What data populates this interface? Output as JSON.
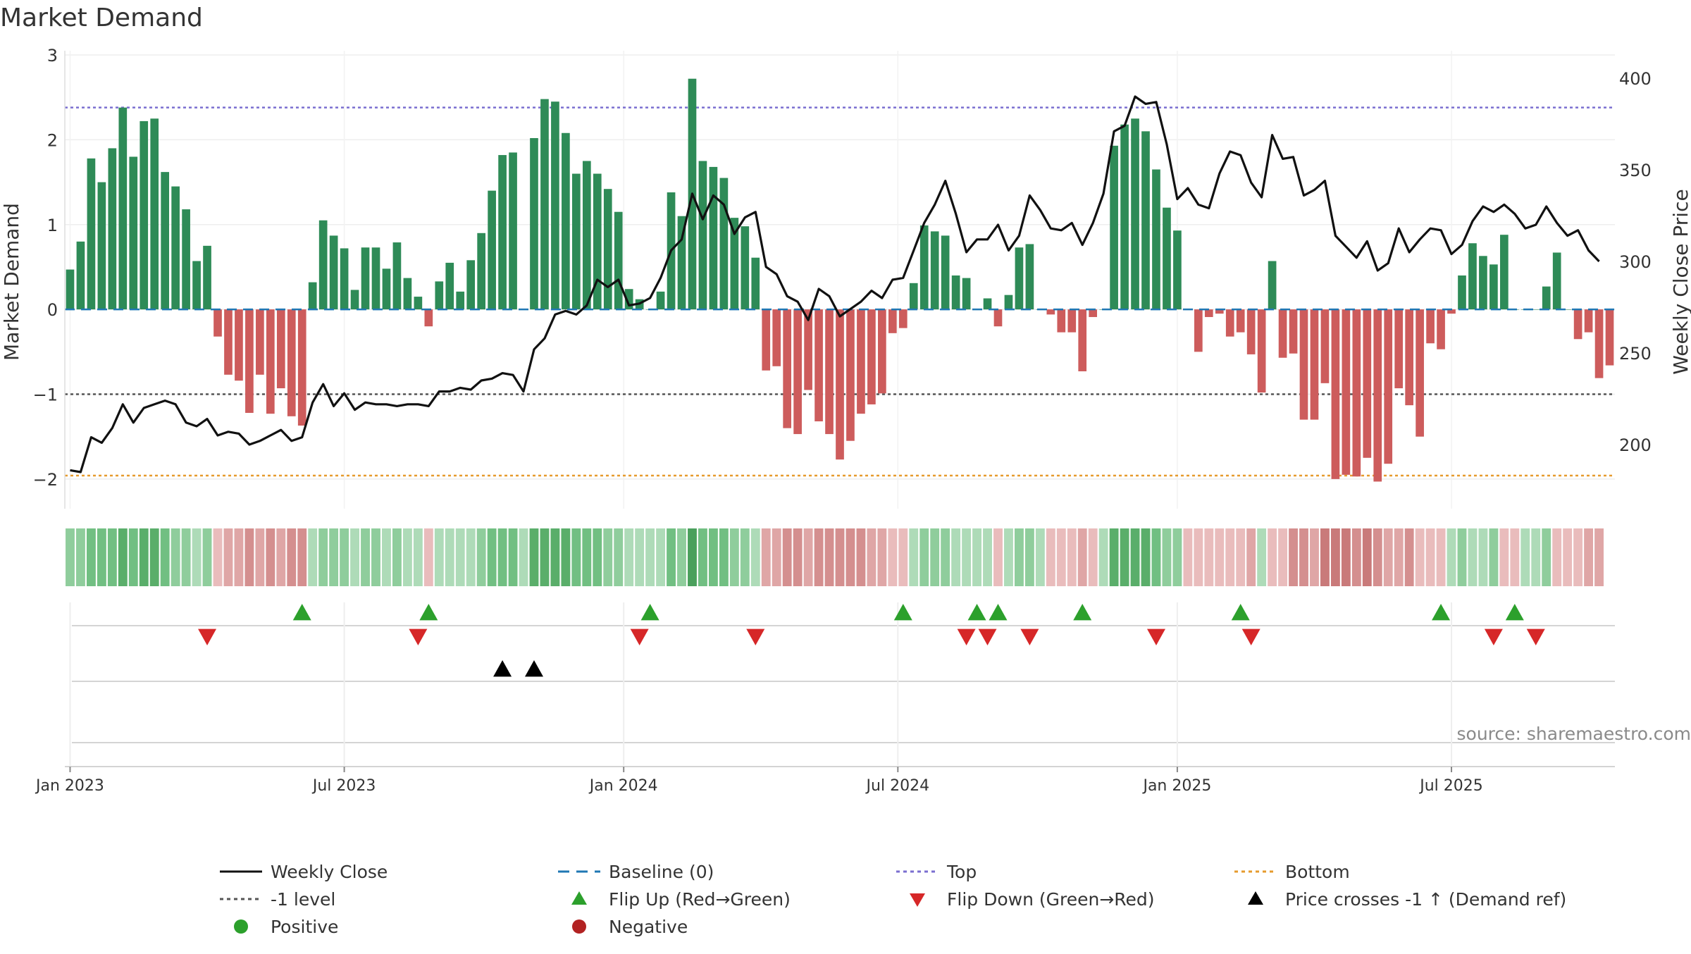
{
  "chart_data": {
    "type": "bar",
    "title": "Market Demand",
    "ylabel_left": "Market Demand",
    "ylabel_right": "Weekly Close Price",
    "ylim_left": [
      -2.35,
      3.05
    ],
    "ylim_right": [
      165,
      415
    ],
    "yticks_left": [
      -2,
      -1,
      0,
      1,
      2,
      3
    ],
    "yticks_right": [
      200,
      250,
      300,
      350,
      400
    ],
    "xticks": [
      {
        "week": 1,
        "label": "Jan 2023"
      },
      {
        "week": 27,
        "label": "Jul 2023"
      },
      {
        "week": 53.5,
        "label": "Jan 2024"
      },
      {
        "week": 79.5,
        "label": "Jul 2024"
      },
      {
        "week": 106,
        "label": "Jan 2025"
      },
      {
        "week": 132,
        "label": "Jul 2025"
      }
    ],
    "reference_lines": {
      "top": 2.38,
      "minus_one": -1,
      "bottom": -1.96,
      "baseline": 0
    },
    "colors": {
      "positive_bar": "#2e8b57",
      "negative_bar": "#cd5c5c",
      "price_line": "#111111",
      "top_line": "#7b6fd0",
      "bottom_line": "#e69b2e",
      "minus_one_line": "#555555",
      "baseline": "#1f77b4",
      "flip_up": "#2ca02c",
      "flip_down": "#d62728",
      "cross_marker": "#000000",
      "legend_positive": "#2ca02c",
      "legend_negative": "#b22222"
    },
    "demand": [
      0.47,
      0.8,
      1.78,
      1.5,
      1.9,
      2.38,
      1.8,
      2.22,
      2.25,
      1.62,
      1.45,
      1.18,
      0.57,
      0.75,
      -0.32,
      -0.77,
      -0.84,
      -1.22,
      -0.77,
      -1.23,
      -0.93,
      -1.26,
      -1.37,
      0.32,
      1.05,
      0.87,
      0.72,
      0.23,
      0.73,
      0.73,
      0.48,
      0.79,
      0.37,
      0.15,
      -0.2,
      0.33,
      0.55,
      0.21,
      0.58,
      0.9,
      1.4,
      1.82,
      1.85,
      0.0,
      2.02,
      2.48,
      2.45,
      2.08,
      1.6,
      1.75,
      1.6,
      1.42,
      1.15,
      0.24,
      0.12,
      0.0,
      0.21,
      1.38,
      1.1,
      2.72,
      1.75,
      1.68,
      1.55,
      1.08,
      0.98,
      0.61,
      -0.72,
      -0.67,
      -1.4,
      -1.47,
      -0.95,
      -1.32,
      -1.47,
      -1.77,
      -1.55,
      -1.23,
      -1.12,
      -0.99,
      -0.28,
      -0.22,
      0.31,
      0.99,
      0.92,
      0.87,
      0.4,
      0.37,
      0.0,
      0.13,
      -0.2,
      0.17,
      0.73,
      0.77,
      0.0,
      -0.06,
      -0.27,
      -0.27,
      -0.73,
      -0.09,
      0.0,
      1.93,
      2.18,
      2.25,
      2.1,
      1.65,
      1.2,
      0.93,
      0.0,
      -0.5,
      -0.09,
      -0.05,
      -0.32,
      -0.27,
      -0.53,
      -0.98,
      0.57,
      -0.57,
      -0.52,
      -1.3,
      -1.3,
      -0.87,
      -2.0,
      -1.95,
      -1.97,
      -1.75,
      -2.03,
      -1.82,
      -0.93,
      -1.13,
      -1.5,
      -0.4,
      -0.47,
      -0.05,
      0.4,
      0.78,
      0.63,
      0.53,
      0.88,
      0.0,
      0.0,
      0.0,
      0.27,
      0.67,
      0.0,
      -0.35,
      -0.27,
      -0.81,
      -0.66
    ],
    "price": [
      186,
      185,
      204,
      201,
      209,
      222,
      212,
      220,
      222,
      224,
      222,
      212,
      210,
      214,
      205,
      207,
      206,
      200,
      202,
      205,
      208,
      202,
      204,
      223,
      233,
      221,
      228,
      219,
      223,
      222,
      222,
      221,
      222,
      222,
      221,
      229,
      229,
      231,
      230,
      235,
      236,
      239,
      238,
      229,
      252,
      258,
      271,
      273,
      271,
      276,
      290,
      286,
      290,
      276,
      277,
      280,
      291,
      306,
      312,
      337,
      323,
      336,
      331,
      315,
      324,
      327,
      297,
      293,
      281,
      278,
      268,
      285,
      281,
      270,
      274,
      278,
      284,
      280,
      290,
      291,
      306,
      321,
      331,
      344,
      326,
      305,
      312,
      312,
      320,
      306,
      314,
      336,
      328,
      318,
      317,
      321,
      309,
      321,
      337,
      371,
      374,
      390,
      386,
      387,
      364,
      334,
      340,
      331,
      329,
      348,
      360,
      358,
      343,
      335,
      369,
      356,
      357,
      336,
      339,
      344,
      314,
      308,
      302,
      311,
      295,
      299,
      318,
      305,
      312,
      318,
      317,
      304,
      309,
      322,
      330,
      327,
      331,
      326,
      318,
      320,
      330,
      321,
      314,
      317,
      306,
      300
    ],
    "intensity_strip": [
      2,
      2,
      3,
      3,
      3,
      4,
      3,
      4,
      4,
      3,
      2,
      2,
      1,
      2,
      -1,
      -2,
      -2,
      -3,
      -2,
      -3,
      -2,
      -3,
      -3,
      1,
      2,
      2,
      2,
      1,
      2,
      2,
      1,
      2,
      1,
      1,
      -1,
      1,
      1,
      1,
      1,
      2,
      3,
      3,
      3,
      1,
      4,
      4,
      4,
      4,
      3,
      3,
      3,
      2,
      2,
      1,
      1,
      1,
      1,
      3,
      2,
      5,
      3,
      3,
      3,
      2,
      2,
      1,
      -2,
      -2,
      -3,
      -3,
      -2,
      -3,
      -3,
      -3,
      -3,
      -3,
      -2,
      -2,
      -1,
      -1,
      1,
      2,
      2,
      2,
      1,
      1,
      1,
      1,
      -1,
      1,
      2,
      2,
      1,
      -1,
      -1,
      -1,
      -2,
      -1,
      1,
      4,
      4,
      4,
      4,
      3,
      2,
      2,
      -1,
      -1,
      -1,
      -1,
      -1,
      -1,
      -2,
      1,
      -1,
      -1,
      -3,
      -3,
      -2,
      -4,
      -4,
      -4,
      -3,
      -4,
      -3,
      -2,
      -2,
      -3,
      -1,
      -1,
      -1,
      1,
      2,
      1,
      1,
      2,
      -1,
      -1,
      1,
      1,
      2,
      -1,
      -1,
      -1,
      -2,
      -2
    ],
    "flip_up_weeks": [
      23,
      35,
      56,
      80,
      87,
      89,
      97,
      112,
      131,
      138
    ],
    "flip_down_weeks": [
      14,
      34,
      55,
      66,
      86,
      88,
      92,
      104,
      113,
      136,
      140
    ],
    "cross_up_weeks": [
      42,
      45
    ],
    "legend": [
      {
        "key": "weekly_close",
        "label": "Weekly Close"
      },
      {
        "key": "baseline",
        "label": "Baseline (0)"
      },
      {
        "key": "top",
        "label": "Top"
      },
      {
        "key": "bottom",
        "label": "Bottom"
      },
      {
        "key": "minus_one",
        "label": "-1 level"
      },
      {
        "key": "flip_up",
        "label": "Flip Up (Red→Green)"
      },
      {
        "key": "flip_down",
        "label": "Flip Down (Green→Red)"
      },
      {
        "key": "cross",
        "label": "Price crosses -1 ↑ (Demand ref)"
      },
      {
        "key": "positive",
        "label": "Positive"
      },
      {
        "key": "negative",
        "label": "Negative"
      }
    ],
    "source": "source: sharemaestro.com"
  }
}
